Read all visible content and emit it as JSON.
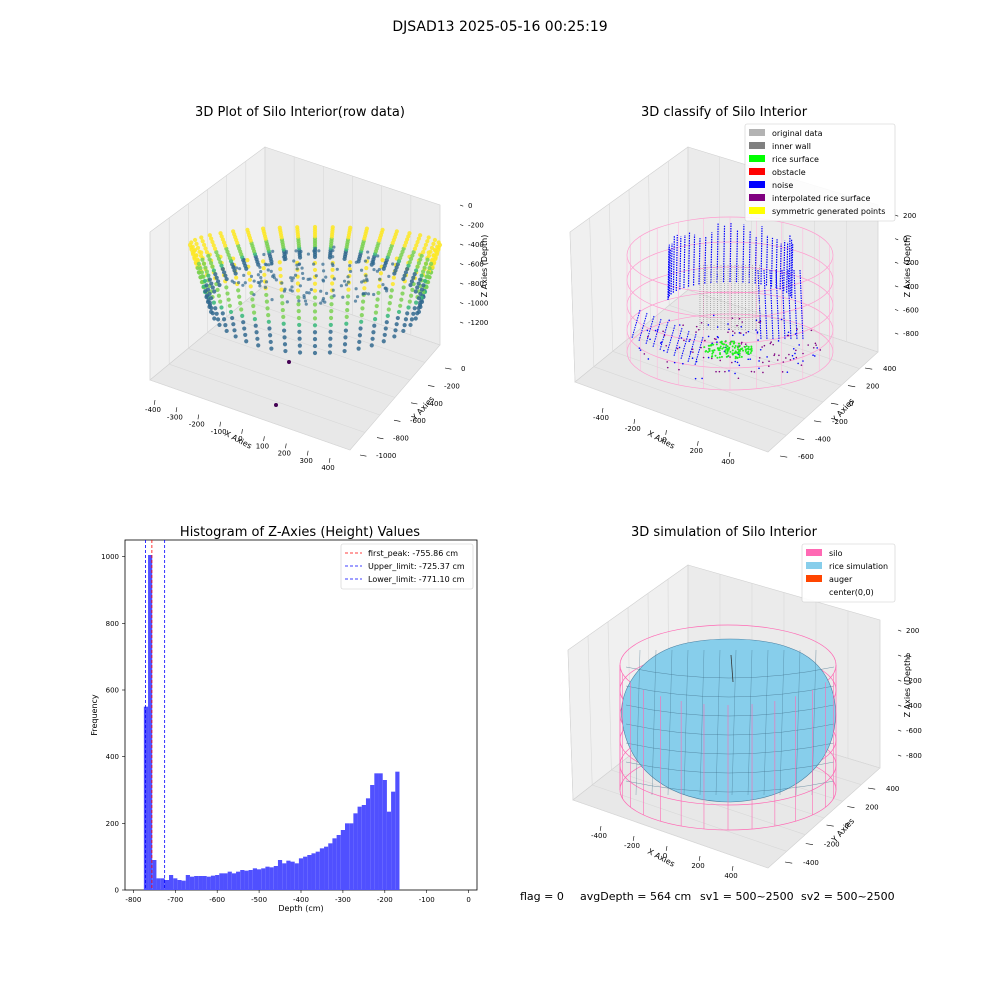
{
  "figure": {
    "suptitle": "DJSAD13 2025-05-16 00:25:19",
    "footer": [
      "flag = 0",
      "avgDepth = 564 cm",
      "sv1 = 500~2500",
      "sv2 = 500~2500"
    ]
  },
  "chart_data": [
    {
      "type": "scatter3d",
      "title": "3D Plot of Silo Interior(row data)",
      "xlabel": "X Axies",
      "ylabel": "Y Axies",
      "zlabel": "Z Axies (Depth)",
      "x_ticks": [
        "-400",
        "-300",
        "-200",
        "-100",
        "0",
        "100",
        "200",
        "300",
        "400"
      ],
      "y_ticks": [
        "0",
        "-200",
        "-400",
        "-600",
        "-800",
        "-1000"
      ],
      "z_ticks": [
        "0",
        "-200",
        "-400",
        "-600",
        "-800",
        "-1000",
        "-1200"
      ],
      "colormap": [
        "#440154",
        "#31688e",
        "#35b779",
        "#fde725"
      ]
    },
    {
      "type": "scatter3d",
      "title": "3D classify of Silo Interior",
      "xlabel": "X Axies",
      "ylabel": "Y Axies",
      "zlabel": "Z Axies (Depth)",
      "x_ticks": [
        "-400",
        "-200",
        "0",
        "200",
        "400"
      ],
      "y_ticks": [
        "400",
        "200",
        "0",
        "-200",
        "-400",
        "-600"
      ],
      "z_ticks": [
        "200",
        "0",
        "-200",
        "-400",
        "-600",
        "-800"
      ],
      "legend_position": "top-right",
      "legend": [
        {
          "label": "original data",
          "color": "#b3b3b3"
        },
        {
          "label": "inner wall",
          "color": "#808080"
        },
        {
          "label": "rice surface",
          "color": "#00ff00"
        },
        {
          "label": "obstacle",
          "color": "#ff0000"
        },
        {
          "label": "noise",
          "color": "#0000ff"
        },
        {
          "label": "interpolated rice surface",
          "color": "#800080"
        },
        {
          "label": "symmetric generated points",
          "color": "#ffff00"
        }
      ]
    },
    {
      "type": "bar",
      "title": "Histogram of Z-Axies (Height) Values",
      "xlabel": "Depth (cm)",
      "ylabel": "Frequency",
      "xlim": [
        -820,
        20
      ],
      "ylim": [
        0,
        1050
      ],
      "x_ticks": [
        -800,
        -700,
        -600,
        -500,
        -400,
        -300,
        -200,
        -100,
        0
      ],
      "y_ticks": [
        0,
        200,
        400,
        600,
        800,
        1000
      ],
      "bar_color": "#5050ff",
      "bins": [
        [
          -775,
          -765,
          550
        ],
        [
          -765,
          -755,
          1005
        ],
        [
          -755,
          -745,
          90
        ],
        [
          -745,
          -735,
          35
        ],
        [
          -735,
          -725,
          35
        ],
        [
          -725,
          -715,
          30
        ],
        [
          -715,
          -705,
          45
        ],
        [
          -705,
          -695,
          35
        ],
        [
          -695,
          -685,
          30
        ],
        [
          -685,
          -675,
          28
        ],
        [
          -675,
          -665,
          45
        ],
        [
          -665,
          -655,
          40
        ],
        [
          -655,
          -645,
          42
        ],
        [
          -645,
          -635,
          42
        ],
        [
          -635,
          -625,
          42
        ],
        [
          -625,
          -615,
          40
        ],
        [
          -615,
          -605,
          43
        ],
        [
          -605,
          -595,
          45
        ],
        [
          -595,
          -585,
          50
        ],
        [
          -585,
          -575,
          50
        ],
        [
          -575,
          -565,
          55
        ],
        [
          -565,
          -555,
          50
        ],
        [
          -555,
          -545,
          55
        ],
        [
          -545,
          -535,
          60
        ],
        [
          -535,
          -525,
          58
        ],
        [
          -525,
          -515,
          60
        ],
        [
          -515,
          -505,
          65
        ],
        [
          -505,
          -495,
          62
        ],
        [
          -495,
          -485,
          65
        ],
        [
          -485,
          -475,
          70
        ],
        [
          -475,
          -465,
          68
        ],
        [
          -465,
          -455,
          72
        ],
        [
          -455,
          -445,
          90
        ],
        [
          -445,
          -435,
          80
        ],
        [
          -435,
          -425,
          88
        ],
        [
          -425,
          -415,
          85
        ],
        [
          -415,
          -405,
          80
        ],
        [
          -405,
          -395,
          95
        ],
        [
          -395,
          -385,
          100
        ],
        [
          -385,
          -375,
          105
        ],
        [
          -375,
          -365,
          110
        ],
        [
          -365,
          -355,
          115
        ],
        [
          -355,
          -345,
          125
        ],
        [
          -345,
          -335,
          130
        ],
        [
          -335,
          -325,
          140
        ],
        [
          -325,
          -315,
          155
        ],
        [
          -315,
          -305,
          165
        ],
        [
          -305,
          -295,
          180
        ],
        [
          -295,
          -285,
          200
        ],
        [
          -285,
          -275,
          200
        ],
        [
          -275,
          -265,
          230
        ],
        [
          -265,
          -255,
          250
        ],
        [
          -255,
          -245,
          255
        ],
        [
          -245,
          -235,
          275
        ],
        [
          -235,
          -225,
          315
        ],
        [
          -225,
          -215,
          350
        ],
        [
          -215,
          -205,
          350
        ],
        [
          -205,
          -195,
          330
        ],
        [
          -195,
          -185,
          235
        ],
        [
          -185,
          -175,
          295
        ],
        [
          -175,
          -165,
          355
        ]
      ],
      "vlines": [
        {
          "x": -755.86,
          "color": "#ff0000",
          "label": "first_peak: -755.86 cm"
        },
        {
          "x": -725.37,
          "color": "#0000ff",
          "label": "Upper_limit: -725.37 cm"
        },
        {
          "x": -771.1,
          "color": "#0000ff",
          "label": "Lower_limit: -771.10 cm"
        }
      ],
      "legend_position": "top-right"
    },
    {
      "type": "surface3d",
      "title": "3D simulation of Silo Interior",
      "xlabel": "X Axies",
      "ylabel": "Y Axies",
      "zlabel": "Z Axies (Depth)",
      "x_ticks": [
        "-400",
        "-200",
        "0",
        "200",
        "400"
      ],
      "y_ticks": [
        "400",
        "200",
        "0",
        "-200",
        "-400"
      ],
      "z_ticks": [
        "200",
        "0",
        "-200",
        "-400",
        "-600",
        "-800"
      ],
      "legend_position": "top-right",
      "legend": [
        {
          "label": "silo",
          "color": "#ff69b4"
        },
        {
          "label": "rice simulation",
          "color": "#87ceeb"
        },
        {
          "label": "auger",
          "color": "#ff4500"
        },
        {
          "label": "center(0,0)",
          "color": "#ffffff"
        }
      ]
    }
  ]
}
